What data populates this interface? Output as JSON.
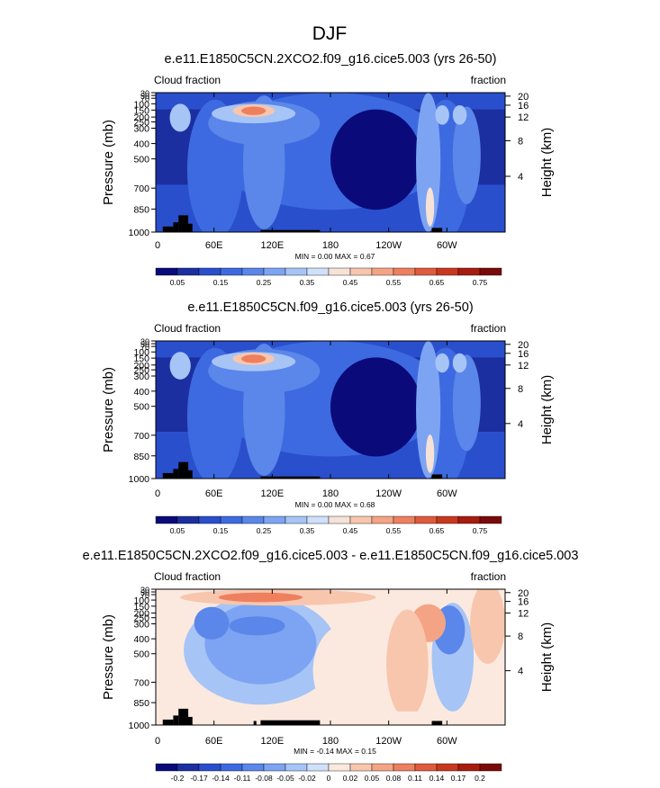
{
  "page_title": "DJF",
  "chart_data": [
    {
      "type": "heatmap",
      "title": "e.e11.E1850C5CN.2XCO2.f09_g16.cice5.003 (yrs 26-50)",
      "left_label": "Cloud fraction",
      "right_label": "fraction",
      "ylabel": "Pressure (mb)",
      "y2label": "Height (km)",
      "x_ticks": [
        "0",
        "60E",
        "120E",
        "180",
        "120W",
        "60W"
      ],
      "y_ticks": [
        "30",
        "50",
        "70",
        "100",
        "150",
        "200",
        "250",
        "300",
        "400",
        "500",
        "700",
        "850",
        "1000"
      ],
      "y2_ticks": [
        "20",
        "16",
        "12",
        "8",
        "4"
      ],
      "minmax_text": "MIN =   0.00  MAX =   0.67",
      "min": 0.0,
      "max": 0.67,
      "colorbar_labels": [
        "0.05",
        "0.15",
        "0.25",
        "0.35",
        "0.45",
        "0.55",
        "0.65",
        "0.75"
      ],
      "colorbar_colors": [
        "#0a0a7a",
        "#1c2fa0",
        "#2a4fcd",
        "#3d6ae0",
        "#5b86ea",
        "#7ca4f2",
        "#a6c4f6",
        "#cfe0fb",
        "#f6e2d6",
        "#f7c6ad",
        "#f4a485",
        "#ee7f5f",
        "#e05a3d",
        "#c8381e",
        "#a81c10",
        "#7a0a08"
      ],
      "grid": false
    },
    {
      "type": "heatmap",
      "title": "e.e11.E1850C5CN.f09_g16.cice5.003 (yrs 26-50)",
      "left_label": "Cloud fraction",
      "right_label": "fraction",
      "ylabel": "Pressure (mb)",
      "y2label": "Height (km)",
      "x_ticks": [
        "0",
        "60E",
        "120E",
        "180",
        "120W",
        "60W"
      ],
      "y_ticks": [
        "30",
        "50",
        "70",
        "100",
        "150",
        "200",
        "250",
        "300",
        "400",
        "500",
        "700",
        "850",
        "1000"
      ],
      "y2_ticks": [
        "20",
        "16",
        "12",
        "8",
        "4"
      ],
      "minmax_text": "MIN =   0.00  MAX =   0.68",
      "min": 0.0,
      "max": 0.68,
      "colorbar_labels": [
        "0.05",
        "0.15",
        "0.25",
        "0.35",
        "0.45",
        "0.55",
        "0.65",
        "0.75"
      ],
      "colorbar_colors": [
        "#0a0a7a",
        "#1c2fa0",
        "#2a4fcd",
        "#3d6ae0",
        "#5b86ea",
        "#7ca4f2",
        "#a6c4f6",
        "#cfe0fb",
        "#f6e2d6",
        "#f7c6ad",
        "#f4a485",
        "#ee7f5f",
        "#e05a3d",
        "#c8381e",
        "#a81c10",
        "#7a0a08"
      ],
      "grid": false
    },
    {
      "type": "heatmap",
      "title": "e.e11.E1850C5CN.2XCO2.f09_g16.cice5.003 - e.e11.E1850C5CN.f09_g16.cice5.003",
      "left_label": "Cloud fraction",
      "right_label": "fraction",
      "ylabel": "Pressure (mb)",
      "y2label": "Height (km)",
      "x_ticks": [
        "0",
        "60E",
        "120E",
        "180",
        "120W",
        "60W"
      ],
      "y_ticks": [
        "30",
        "50",
        "70",
        "100",
        "150",
        "200",
        "250",
        "300",
        "400",
        "500",
        "700",
        "850",
        "1000"
      ],
      "y2_ticks": [
        "20",
        "16",
        "12",
        "8",
        "4"
      ],
      "minmax_text": "MIN =  -0.14  MAX =   0.15",
      "min": -0.14,
      "max": 0.15,
      "colorbar_labels": [
        "-0.2",
        "-0.17",
        "-0.14",
        "-0.11",
        "-0.08",
        "-0.05",
        "-0.02",
        "0",
        "0.02",
        "0.05",
        "0.08",
        "0.11",
        "0.14",
        "0.17",
        "0.2"
      ],
      "colorbar_colors": [
        "#0a0a7a",
        "#1c2fa0",
        "#2a4fcd",
        "#3d6ae0",
        "#5b86ea",
        "#7ca4f2",
        "#a6c4f6",
        "#cfe0fb",
        "#fbe9df",
        "#f7c6ad",
        "#f4a485",
        "#ee7f5f",
        "#e05a3d",
        "#c8381e",
        "#a81c10",
        "#7a0a08"
      ],
      "grid": false
    }
  ]
}
